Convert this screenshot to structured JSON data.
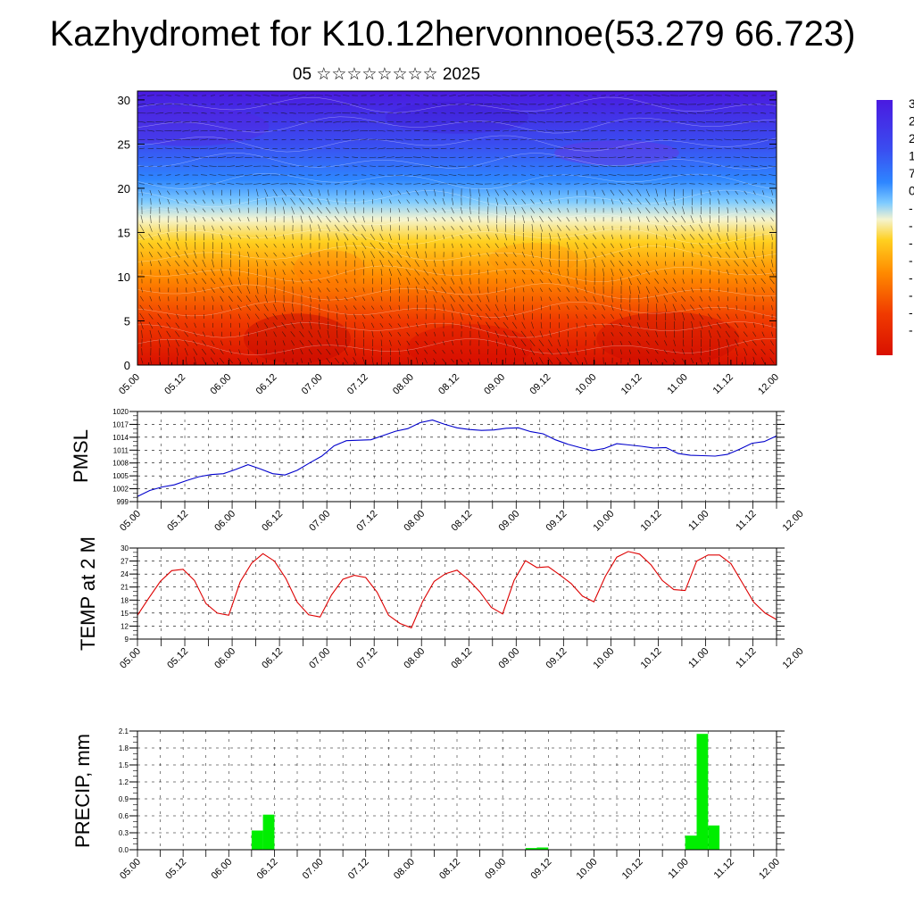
{
  "header": {
    "title": "Kazhydromet for K10.12hervonnoe(53.279 66.723)",
    "subtitle": "05 ☆☆☆☆☆☆☆☆ 2025"
  },
  "chart_data": [
    {
      "type": "heatmap",
      "description_of_fields": "temperature cross-section (height vs time) with wind vectors",
      "x_tick_labels": [
        "05.00",
        "05.12",
        "06.00",
        "06.12",
        "07.00",
        "07.12",
        "08.00",
        "08.12",
        "09.00",
        "09.12",
        "10.00",
        "10.12",
        "11.00",
        "11.12",
        "12.00"
      ],
      "ylim": [
        0,
        31
      ],
      "y_ticks": [
        0,
        5,
        10,
        15,
        20,
        25,
        30
      ],
      "ylabel": "",
      "colorbar_labels": [
        "3",
        "2",
        "2",
        "1",
        "7",
        "0",
        "-",
        "-",
        "-",
        "-",
        "-",
        "-",
        "-",
        "-"
      ],
      "colors": {
        "top": "#4a1ae0",
        "mid_cold": "#2fa2ff",
        "neutral": "#f6f6cc",
        "mid_warm": "#ffd000",
        "bottom": "#e61a05"
      },
      "bands": [
        {
          "height": 0,
          "color": "#d91000"
        },
        {
          "height": 5,
          "color": "#f03a00"
        },
        {
          "height": 10,
          "color": "#ff8a00"
        },
        {
          "height": 14,
          "color": "#ffd020"
        },
        {
          "height": 16.5,
          "color": "#f4f4d0"
        },
        {
          "height": 18.5,
          "color": "#7ecbff"
        },
        {
          "height": 21,
          "color": "#2e86ff"
        },
        {
          "height": 25,
          "color": "#3a4df0"
        },
        {
          "height": 31,
          "color": "#4a1ae0"
        }
      ]
    },
    {
      "type": "line",
      "ylabel": "PMSL",
      "ylim": [
        999,
        1020
      ],
      "y_ticks": [
        999,
        1002,
        1005,
        1008,
        1011,
        1014,
        1017,
        1020
      ],
      "x_tick_labels": [
        "05.00",
        "05.12",
        "06.00",
        "06.12",
        "07.00",
        "07.12",
        "08.00",
        "08.12",
        "09.00",
        "09.12",
        "10.00",
        "10.12",
        "11.00",
        "11.12",
        "12.00"
      ],
      "line_color": "#0000cc",
      "values": [
        1000.2,
        1001.6,
        1002.4,
        1002.9,
        1003.9,
        1004.8,
        1005.3,
        1005.5,
        1006.5,
        1007.6,
        1006.6,
        1005.5,
        1005.2,
        1006.3,
        1008.0,
        1009.6,
        1012.0,
        1013.2,
        1013.3,
        1013.4,
        1014.4,
        1015.4,
        1016.0,
        1017.4,
        1018.0,
        1017.0,
        1016.2,
        1015.8,
        1015.6,
        1015.7,
        1016.1,
        1016.2,
        1015.3,
        1014.8,
        1013.4,
        1012.4,
        1011.6,
        1010.9,
        1011.4,
        1012.5,
        1012.2,
        1011.9,
        1011.5,
        1011.6,
        1010.2,
        1009.8,
        1009.7,
        1009.6,
        1010.0,
        1011.2,
        1012.6,
        1013.0,
        1014.3
      ]
    },
    {
      "type": "line",
      "ylabel": "TEMP at 2 M",
      "ylim": [
        9,
        30
      ],
      "y_ticks": [
        9,
        12,
        15,
        18,
        21,
        24,
        27,
        30
      ],
      "x_tick_labels": [
        "05.00",
        "05.12",
        "06.00",
        "06.12",
        "07.00",
        "07.12",
        "08.00",
        "08.12",
        "09.00",
        "09.12",
        "10.00",
        "10.12",
        "11.00",
        "11.12",
        "12.00"
      ],
      "line_color": "#dd0000",
      "values": [
        14.5,
        18.5,
        22.3,
        24.8,
        25.1,
        22.5,
        17.2,
        15.0,
        14.5,
        22.2,
        26.5,
        28.7,
        27.0,
        23.0,
        17.5,
        14.6,
        14.1,
        19.2,
        22.8,
        23.7,
        23.2,
        19.8,
        14.5,
        12.6,
        11.6,
        17.7,
        22.3,
        24.1,
        24.9,
        22.7,
        19.9,
        16.3,
        14.8,
        22.5,
        27.1,
        25.5,
        25.7,
        23.8,
        21.8,
        18.9,
        17.6,
        23.5,
        27.9,
        29.2,
        28.6,
        26.1,
        22.5,
        20.4,
        20.2,
        27.0,
        28.4,
        28.4,
        26.4,
        22.0,
        17.5,
        15.0,
        13.5
      ]
    },
    {
      "type": "bar",
      "ylabel": "PRECIP, mm",
      "ylim": [
        0,
        2.1
      ],
      "y_ticks": [
        "0.0",
        "0.3",
        "0.6",
        "0.9",
        "1.2",
        "1.5",
        "1.8",
        "2.1"
      ],
      "x_tick_labels": [
        "05.00",
        "05.12",
        "06.00",
        "06.12",
        "07.00",
        "07.12",
        "08.00",
        "08.12",
        "09.00",
        "09.12",
        "10.00",
        "10.12",
        "11.00",
        "11.12",
        "12.00"
      ],
      "bar_color": "#00ee00",
      "bars": [
        {
          "time": "06.09",
          "value": 0.34
        },
        {
          "time": "06.12",
          "value": 0.62
        },
        {
          "time": "09.09",
          "value": 0.03
        },
        {
          "time": "09.12",
          "value": 0.04
        },
        {
          "time": "11.03",
          "value": 0.25
        },
        {
          "time": "11.06",
          "value": 2.05
        },
        {
          "time": "11.09",
          "value": 0.43
        }
      ]
    }
  ]
}
